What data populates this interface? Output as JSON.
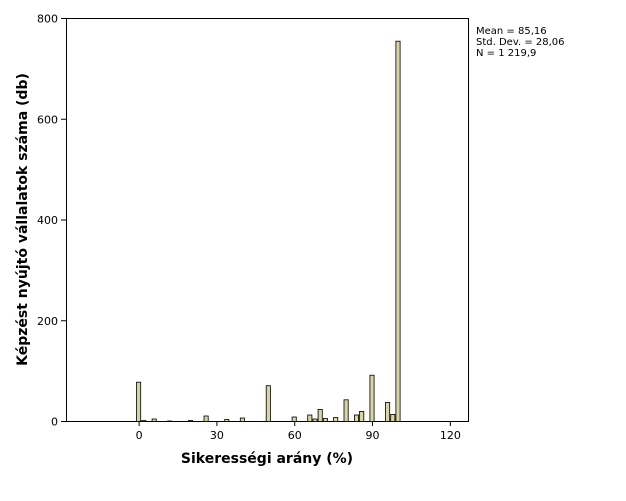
{
  "chart_data": {
    "type": "bar",
    "xlabel": "Sikerességi arány (%)",
    "ylabel": "Képzést nyújtó vállalatok száma (db)",
    "xlim": [
      -28,
      127
    ],
    "ylim": [
      0,
      800
    ],
    "xticks": [
      {
        "value": 0,
        "label": "0"
      },
      {
        "value": 30,
        "label": "30"
      },
      {
        "value": 60,
        "label": "60"
      },
      {
        "value": 90,
        "label": "90"
      },
      {
        "value": 120,
        "label": "120"
      }
    ],
    "yticks": [
      {
        "value": 0,
        "label": "0"
      },
      {
        "value": 200,
        "label": "200"
      },
      {
        "value": 400,
        "label": "400"
      },
      {
        "value": 600,
        "label": "600"
      },
      {
        "value": 800,
        "label": "800"
      }
    ],
    "bar_width": 2,
    "bins": [
      {
        "x": 0,
        "count": 78
      },
      {
        "x": 2,
        "count": 2
      },
      {
        "x": 6,
        "count": 5
      },
      {
        "x": 12,
        "count": 1
      },
      {
        "x": 20,
        "count": 2
      },
      {
        "x": 26,
        "count": 11
      },
      {
        "x": 34,
        "count": 4
      },
      {
        "x": 40,
        "count": 7
      },
      {
        "x": 50,
        "count": 71
      },
      {
        "x": 60,
        "count": 9
      },
      {
        "x": 66,
        "count": 13
      },
      {
        "x": 68,
        "count": 5
      },
      {
        "x": 70,
        "count": 24
      },
      {
        "x": 72,
        "count": 6
      },
      {
        "x": 76,
        "count": 8
      },
      {
        "x": 80,
        "count": 43
      },
      {
        "x": 84,
        "count": 13
      },
      {
        "x": 86,
        "count": 20
      },
      {
        "x": 90,
        "count": 92
      },
      {
        "x": 96,
        "count": 38
      },
      {
        "x": 98,
        "count": 14
      },
      {
        "x": 100,
        "count": 755
      }
    ],
    "stats": {
      "mean": "Mean = 85,16",
      "std": "Std. Dev. = 28,06",
      "n": "N = 1 219,9"
    },
    "colors": {
      "bar_fill": "#d8d5a5",
      "bar_stroke": "#000000",
      "plot_background": "#ffffff"
    }
  }
}
